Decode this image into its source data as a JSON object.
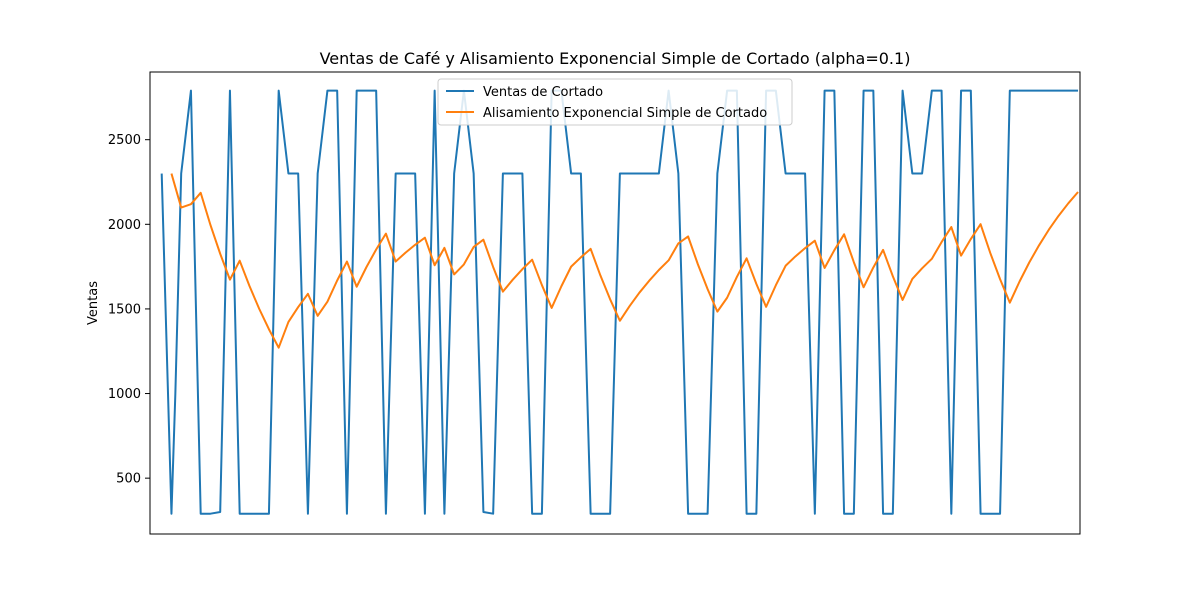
{
  "chart_data": {
    "type": "line",
    "title": "Ventas de Café y Alisamiento Exponencial Simple de Cortado (alpha=0.1)",
    "xlabel": "",
    "ylabel": "Ventas",
    "xlim": [
      -1.2,
      94.2
    ],
    "ylim": [
      170,
      2900
    ],
    "yticks": [
      500,
      1000,
      1500,
      2000,
      2500
    ],
    "grid": false,
    "legend_position": "top-center",
    "series": [
      {
        "name": "Ventas de Cortado",
        "color": "#1f77b4",
        "x": [
          0,
          1,
          1.4,
          2,
          3,
          4,
          5,
          6,
          7,
          8,
          9,
          10,
          11,
          12,
          13,
          14,
          15,
          16,
          17,
          18,
          19,
          20,
          21,
          22,
          23,
          24,
          25,
          26,
          27,
          28,
          29,
          30,
          31,
          32,
          33,
          34,
          35,
          36,
          37,
          38,
          39,
          40,
          41,
          42,
          43,
          44,
          45,
          46,
          47,
          48,
          49,
          50,
          51,
          52,
          53,
          54,
          55,
          56,
          57,
          58,
          59,
          60,
          61,
          62,
          63,
          64,
          65,
          66,
          67,
          68,
          69,
          70,
          71,
          72,
          73,
          74,
          75,
          76,
          77,
          78,
          79,
          80,
          81,
          82,
          83,
          84,
          85,
          86,
          87,
          88,
          89,
          90,
          91,
          92,
          93,
          94
        ],
        "y": [
          2300,
          290,
          1000,
          2300,
          2790,
          290,
          290,
          300,
          2790,
          290,
          290,
          290,
          290,
          2790,
          2300,
          2300,
          290,
          2300,
          2790,
          2790,
          290,
          2790,
          2790,
          2790,
          290,
          2300,
          2300,
          2300,
          290,
          2790,
          290,
          2300,
          2790,
          2300,
          300,
          290,
          2300,
          2300,
          2300,
          290,
          290,
          2790,
          2790,
          2300,
          2300,
          290,
          290,
          290,
          2300,
          2300,
          2300,
          2300,
          2300,
          2790,
          2300,
          290,
          290,
          290,
          2300,
          2790,
          2790,
          290,
          290,
          2790,
          2790,
          2300,
          2300,
          2300,
          290,
          2790,
          2790,
          290,
          290,
          2790,
          2790,
          290,
          290,
          2790,
          2300,
          2300,
          2790,
          2790,
          290,
          2790,
          2790,
          290,
          290,
          290,
          2790,
          2790,
          2790,
          2790,
          2790,
          2790,
          2790,
          2790
        ]
      },
      {
        "name": "Alisamiento Exponencial Simple de Cortado",
        "color": "#ff7f0e",
        "x": [
          1,
          2,
          3,
          4,
          5,
          6,
          7,
          8,
          9,
          10,
          11,
          12,
          13,
          14,
          15,
          16,
          17,
          18,
          19,
          20,
          21,
          22,
          23,
          24,
          25,
          26,
          27,
          28,
          29,
          30,
          31,
          32,
          33,
          34,
          35,
          36,
          37,
          38,
          39,
          40,
          41,
          42,
          43,
          44,
          45,
          46,
          47,
          48,
          49,
          50,
          51,
          52,
          53,
          54,
          55,
          56,
          57,
          58,
          59,
          60,
          61,
          62,
          63,
          64,
          65,
          66,
          67,
          68,
          69,
          70,
          71,
          72,
          73,
          74,
          75,
          76,
          77,
          78,
          79,
          80,
          81,
          82,
          83,
          84,
          85,
          86,
          87,
          88,
          89,
          90,
          91,
          92,
          93,
          94
        ],
        "y": [
          2300,
          2099,
          2119,
          2186,
          1996,
          1826,
          1673,
          1785,
          1636,
          1501,
          1380,
          1271,
          1423,
          1511,
          1589,
          1459,
          1543,
          1668,
          1780,
          1631,
          1747,
          1851,
          1945,
          1780,
          1832,
          1879,
          1921,
          1758,
          1861,
          1704,
          1763,
          1866,
          1909,
          1748,
          1602,
          1672,
          1735,
          1791,
          1641,
          1506,
          1634,
          1750,
          1805,
          1855,
          1698,
          1557,
          1430,
          1517,
          1596,
          1666,
          1730,
          1787,
          1887,
          1928,
          1764,
          1617,
          1484,
          1566,
          1689,
          1799,
          1648,
          1512,
          1640,
          1755,
          1810,
          1859,
          1903,
          1742,
          1847,
          1941,
          1776,
          1628,
          1745,
          1849,
          1693,
          1553,
          1677,
          1740,
          1796,
          1895,
          1984,
          1815,
          1913,
          2001,
          1830,
          1676,
          1537,
          1662,
          1775,
          1876,
          1968,
          2050,
          2124,
          2191
        ]
      }
    ]
  }
}
